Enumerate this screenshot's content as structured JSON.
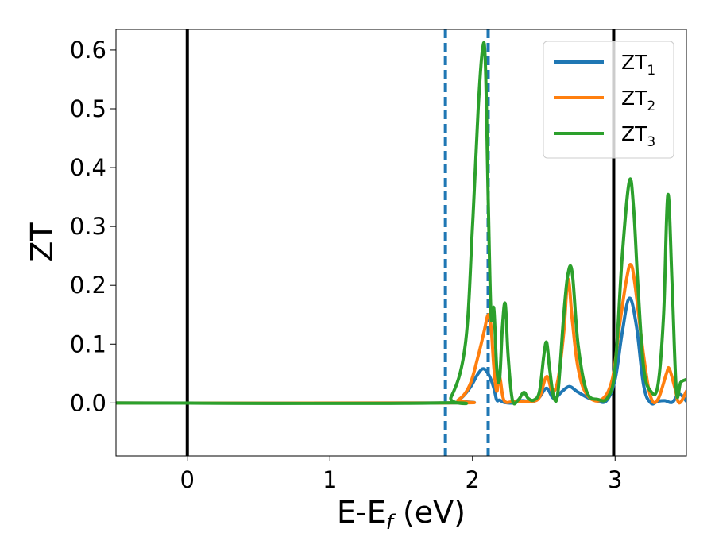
{
  "chart_data": {
    "type": "line",
    "title": "",
    "xlabel_main": "E-E",
    "xlabel_sub": "f",
    "xlabel_tail": " (eV)",
    "ylabel": "ZT",
    "xlim": [
      -0.5,
      3.5
    ],
    "ylim": [
      -0.09,
      0.635
    ],
    "xticks": [
      0,
      1,
      2,
      3
    ],
    "xtick_labels": [
      "0",
      "1",
      "2",
      "3"
    ],
    "yticks": [
      0.0,
      0.1,
      0.2,
      0.3,
      0.4,
      0.5,
      0.6
    ],
    "ytick_labels": [
      "0.0",
      "0.1",
      "0.2",
      "0.3",
      "0.4",
      "0.5",
      "0.6"
    ],
    "grid": false,
    "legend": "top-right",
    "vertical_lines": [
      {
        "x": 0.0,
        "style": "solid",
        "color": "#000000"
      },
      {
        "x": 2.99,
        "style": "solid",
        "color": "#000000"
      },
      {
        "x": 1.81,
        "style": "dashed",
        "color": "#1f77b4"
      },
      {
        "x": 2.11,
        "style": "dashed",
        "color": "#1f77b4"
      }
    ],
    "series": [
      {
        "label_main": "ZT",
        "label_sub": "1",
        "color": "#1f77b4",
        "x": [
          -0.5,
          1.8,
          1.9,
          1.98,
          2.04,
          2.08,
          2.12,
          2.15,
          2.17,
          2.19,
          2.22,
          2.28,
          2.35,
          2.42,
          2.47,
          2.52,
          2.57,
          2.63,
          2.68,
          2.73,
          2.8,
          2.87,
          2.94,
          3.0,
          3.05,
          3.1,
          3.15,
          3.2,
          3.25,
          3.3,
          3.35,
          3.4,
          3.45,
          3.5
        ],
        "y": [
          0.0,
          0.0,
          0.005,
          0.025,
          0.05,
          0.058,
          0.045,
          0.025,
          0.005,
          0.005,
          0.001,
          0.0,
          0.004,
          0.002,
          0.01,
          0.025,
          0.008,
          0.02,
          0.028,
          0.02,
          0.01,
          0.004,
          0.004,
          0.04,
          0.12,
          0.178,
          0.13,
          0.03,
          0.0,
          0.003,
          0.004,
          0.001,
          0.015,
          0.003
        ]
      },
      {
        "label_main": "ZT",
        "label_sub": "2",
        "color": "#ff7f0e",
        "x": [
          -0.5,
          1.8,
          1.9,
          1.98,
          2.04,
          2.08,
          2.11,
          2.13,
          2.15,
          2.17,
          2.19,
          2.22,
          2.28,
          2.35,
          2.42,
          2.47,
          2.52,
          2.56,
          2.6,
          2.64,
          2.67,
          2.7,
          2.74,
          2.8,
          2.9,
          2.98,
          3.03,
          3.08,
          3.11,
          3.14,
          3.2,
          3.25,
          3.3,
          3.36,
          3.38,
          3.42,
          3.45,
          3.5
        ],
        "y": [
          0.0,
          0.0,
          0.005,
          0.03,
          0.08,
          0.12,
          0.15,
          0.13,
          0.06,
          0.02,
          0.045,
          0.005,
          0.002,
          0.003,
          0.003,
          0.01,
          0.045,
          0.02,
          0.04,
          0.12,
          0.21,
          0.14,
          0.06,
          0.015,
          0.005,
          0.04,
          0.13,
          0.21,
          0.235,
          0.2,
          0.08,
          0.01,
          0.006,
          0.05,
          0.058,
          0.025,
          0.0,
          0.02
        ]
      },
      {
        "label_main": "ZT",
        "label_sub": "3",
        "color": "#2ca02c",
        "x": [
          -0.5,
          1.75,
          1.85,
          1.95,
          2.0,
          2.04,
          2.07,
          2.09,
          2.11,
          2.13,
          2.15,
          2.17,
          2.19,
          2.21,
          2.23,
          2.25,
          2.28,
          2.32,
          2.36,
          2.39,
          2.43,
          2.47,
          2.5,
          2.52,
          2.54,
          2.57,
          2.6,
          2.64,
          2.67,
          2.7,
          2.74,
          2.8,
          2.88,
          2.95,
          3.0,
          3.05,
          3.1,
          3.13,
          3.16,
          3.2,
          3.25,
          3.3,
          3.34,
          3.37,
          3.4,
          3.43,
          3.46,
          3.5
        ],
        "y": [
          0.0,
          0.0,
          0.01,
          0.1,
          0.3,
          0.5,
          0.6,
          0.58,
          0.35,
          0.15,
          0.16,
          0.06,
          0.04,
          0.13,
          0.168,
          0.08,
          0.005,
          0.005,
          0.018,
          0.008,
          0.005,
          0.02,
          0.08,
          0.103,
          0.06,
          0.01,
          0.02,
          0.15,
          0.22,
          0.22,
          0.1,
          0.02,
          0.006,
          0.01,
          0.06,
          0.25,
          0.377,
          0.33,
          0.2,
          0.06,
          0.02,
          0.03,
          0.15,
          0.354,
          0.2,
          0.02,
          0.035,
          0.04
        ]
      }
    ]
  }
}
